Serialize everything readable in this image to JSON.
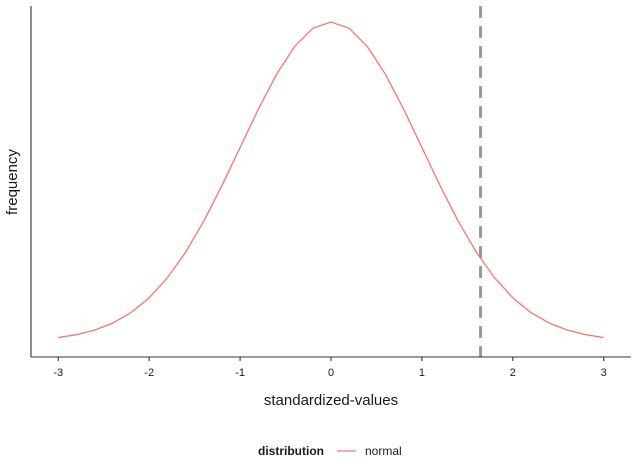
{
  "chart_data": {
    "type": "line",
    "xlabel": "standardized-values",
    "ylabel": "frequency",
    "xlim": [
      -3.3,
      3.3
    ],
    "ylim": [
      0,
      0.4
    ],
    "x_ticks": [
      -3,
      -2,
      -1,
      0,
      1,
      2,
      3
    ],
    "x_tick_labels": [
      "-3",
      "-2",
      "-1",
      "0",
      "1",
      "2",
      "3"
    ],
    "y_ticks_shown": false,
    "grid": false,
    "legend_position": "bottom",
    "legend": {
      "title": "distribution",
      "entries": [
        {
          "label": "normal",
          "color": "#f8766d"
        }
      ]
    },
    "series": [
      {
        "name": "normal",
        "color": "#f8766d",
        "x": [
          -3.0,
          -2.8,
          -2.6,
          -2.4,
          -2.2,
          -2.0,
          -1.8,
          -1.6,
          -1.4,
          -1.2,
          -1.0,
          -0.8,
          -0.6,
          -0.4,
          -0.2,
          0.0,
          0.2,
          0.4,
          0.6,
          0.8,
          1.0,
          1.2,
          1.4,
          1.6,
          1.8,
          2.0,
          2.2,
          2.4,
          2.6,
          2.8,
          3.0
        ],
        "y": [
          0.0044,
          0.0079,
          0.0136,
          0.0224,
          0.0355,
          0.054,
          0.079,
          0.1109,
          0.1497,
          0.1942,
          0.242,
          0.2897,
          0.3332,
          0.3683,
          0.391,
          0.3989,
          0.391,
          0.3683,
          0.3332,
          0.2897,
          0.242,
          0.1942,
          0.1497,
          0.1109,
          0.079,
          0.054,
          0.0355,
          0.0224,
          0.0136,
          0.0079,
          0.0044
        ]
      }
    ],
    "reference_lines": [
      {
        "orientation": "vertical",
        "x": 1.645,
        "style": "dashed",
        "color": "#999999"
      }
    ]
  }
}
